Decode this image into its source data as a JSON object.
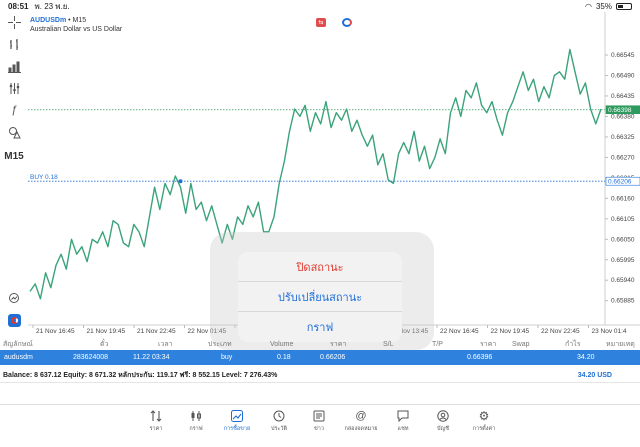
{
  "status_bar": {
    "time": "08:51",
    "date": "พ. 23 พ.ย.",
    "battery": "35%"
  },
  "toolbar": {
    "items": [
      "crosshair-icon",
      "bar-chart-icon",
      "indicators-icon",
      "chart-type-icon",
      "function-icon",
      "objects-icon"
    ],
    "timeframe": "M15"
  },
  "chart": {
    "symbol": "AUDUSDm",
    "timeframe": "M15",
    "description": "Australian Dollar vs US Dollar",
    "buy_line_label": "BUY 0.18",
    "current_price_label": "0.66398",
    "buy_price_label": "0.66206"
  },
  "chart_data": {
    "type": "line",
    "title": "AUDUSDm • M15",
    "subtitle": "Australian Dollar vs US Dollar",
    "y_ticks": [
      "0.66545",
      "0.66490",
      "0.66435",
      "0.66380",
      "0.66325",
      "0.66270",
      "0.66215",
      "0.66160",
      "0.66105",
      "0.66050",
      "0.65995",
      "0.65940",
      "0.65885"
    ],
    "x_ticks": [
      "21 Nov 16:45",
      "21 Nov 19:45",
      "21 Nov 22:45",
      "22 Nov 01:45",
      "22 Nov 04:45",
      "22 Nov 07:45",
      "22 Nov 10:45",
      "22 Nov 13:45",
      "22 Nov 16:45",
      "22 Nov 19:45",
      "22 Nov 22:45",
      "23 Nov 01:4"
    ],
    "ylim": [
      0.6586,
      0.6658
    ],
    "series": [
      {
        "values": [
          0.6591,
          0.6593,
          0.6589,
          0.6596,
          0.6592,
          0.6598,
          0.6601,
          0.6597,
          0.6605,
          0.6601,
          0.6603,
          0.6599,
          0.6605,
          0.6604,
          0.6607,
          0.6603,
          0.661,
          0.6609,
          0.6604,
          0.6603,
          0.6609,
          0.6607,
          0.6603,
          0.6611,
          0.6619,
          0.6613,
          0.662,
          0.6617,
          0.6622,
          0.6619,
          0.6612,
          0.662,
          0.6613,
          0.6615,
          0.661,
          0.6614,
          0.6609,
          0.6604,
          0.6609,
          0.6605,
          0.6611,
          0.6609,
          0.6614,
          0.6611,
          0.6615,
          0.6607,
          0.6607,
          0.6611,
          0.662,
          0.6626,
          0.6634,
          0.664,
          0.6638,
          0.6641,
          0.6634,
          0.6639,
          0.6636,
          0.6642,
          0.6635,
          0.6639,
          0.6637,
          0.664,
          0.6634,
          0.6637,
          0.6633,
          0.663,
          0.6633,
          0.6625,
          0.6628,
          0.6621,
          0.662,
          0.6628,
          0.6631,
          0.6628,
          0.6634,
          0.6626,
          0.663,
          0.6624,
          0.6627,
          0.6632,
          0.6628,
          0.6639,
          0.6643,
          0.6638,
          0.6645,
          0.6643,
          0.6647,
          0.6641,
          0.6639,
          0.6642,
          0.6637,
          0.6633,
          0.6639,
          0.6642,
          0.6646,
          0.665,
          0.6645,
          0.6648,
          0.6642,
          0.6646,
          0.6643,
          0.6649,
          0.665,
          0.6648,
          0.6656,
          0.665,
          0.6644,
          0.6647,
          0.664,
          0.6636,
          0.664
        ]
      }
    ],
    "horizontal_lines": [
      {
        "label": "BUY 0.18",
        "value": 0.66206,
        "style": "dotted",
        "color": "#1f6fd6"
      },
      {
        "label": "0.66398",
        "value": 0.66398,
        "style": "dotted",
        "color": "#2e9a5e"
      }
    ],
    "line_color": "#3aa37a",
    "grid": false
  },
  "popup": {
    "items": [
      "ปิดสถานะ",
      "ปรับเปลี่ยนสถานะ",
      "กราฟ"
    ]
  },
  "positions": {
    "headers": [
      "สัญลักษณ์",
      "ตั๋ว",
      "เวลา",
      "ประเภท",
      "Volume",
      "ราคา",
      "S/L",
      "T/P",
      "ราคา",
      "Swap",
      "กำไร",
      "หมายเหตุ"
    ],
    "rows": [
      {
        "symbol": "audusdm",
        "ticket": "283624008",
        "time": "11.22 03:34",
        "type": "buy",
        "volume": "0.18",
        "open_price": "0.66206",
        "current_price": "0.66396",
        "profit": "34.20"
      }
    ]
  },
  "balance_bar": {
    "text": "Balance: 8 637.12 Equity: 8 671.32 หลักประกัน: 119.17 ฟรี: 8 552.15 Level: 7 276.43%",
    "profit": "34.20  USD"
  },
  "tabs": [
    {
      "label": "ราคา",
      "icon": "quotes-icon"
    },
    {
      "label": "กราฟ",
      "icon": "chart-icon"
    },
    {
      "label": "การซื้อขาย",
      "icon": "trade-icon",
      "active": true
    },
    {
      "label": "ประวัติ",
      "icon": "history-icon"
    },
    {
      "label": "ข่าว",
      "icon": "news-icon"
    },
    {
      "label": "กล่องจดหมาย",
      "icon": "mailbox-icon"
    },
    {
      "label": "แชท",
      "icon": "chat-icon"
    },
    {
      "label": "บัญชี",
      "icon": "accounts-icon"
    },
    {
      "label": "การตั้งค่า",
      "icon": "settings-icon"
    }
  ],
  "colors": {
    "accent": "#1f6fd6",
    "row_selected": "#2e82dd",
    "danger": "#e03a2f",
    "line": "#3aa37a"
  }
}
